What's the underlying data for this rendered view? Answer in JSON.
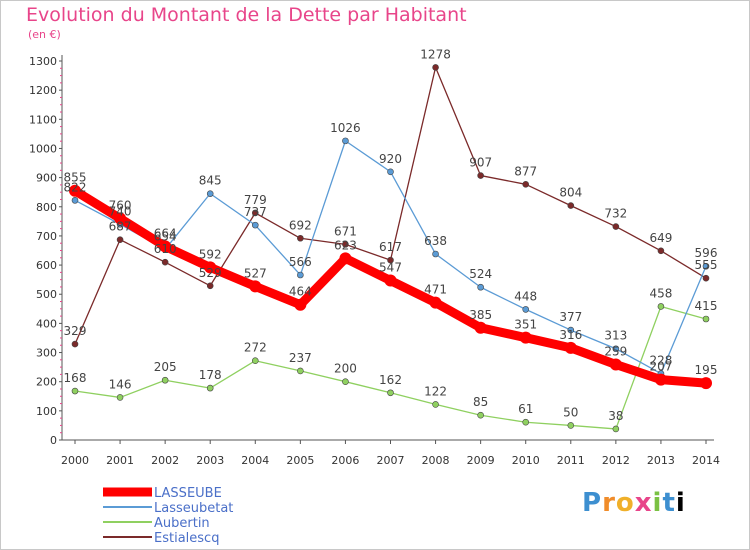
{
  "header": {
    "title": "Evolution du Montant de la Dette par Habitant",
    "unit": "(en €)"
  },
  "brand": {
    "name": "Proxiti"
  },
  "chart_data": {
    "type": "line",
    "x": [
      "2000",
      "2001",
      "2002",
      "2003",
      "2004",
      "2005",
      "2006",
      "2007",
      "2008",
      "2009",
      "2010",
      "2011",
      "2012",
      "2013",
      "2014"
    ],
    "ylim": [
      0,
      1300
    ],
    "yticks": [
      0,
      100,
      200,
      300,
      400,
      500,
      600,
      700,
      800,
      900,
      1000,
      1100,
      1200,
      1300
    ],
    "grid": false,
    "legend": "bottom-left",
    "series": [
      {
        "name": "LASSEUBE",
        "color": "#ff0000",
        "values": [
          855,
          760,
          664,
          592,
          527,
          464,
          623,
          547,
          471,
          385,
          351,
          316,
          259,
          207,
          195
        ]
      },
      {
        "name": "Lasseubetat",
        "color": "#5b9bd5",
        "values": [
          822,
          740,
          654,
          845,
          737,
          566,
          1026,
          920,
          638,
          524,
          448,
          377,
          313,
          228,
          596
        ]
      },
      {
        "name": "Aubertin",
        "color": "#8fd060",
        "values": [
          168,
          146,
          205,
          178,
          272,
          237,
          200,
          162,
          122,
          85,
          61,
          50,
          38,
          458,
          415
        ]
      },
      {
        "name": "Estialescq",
        "color": "#7b2a2a",
        "values": [
          329,
          687,
          610,
          529,
          779,
          692,
          671,
          617,
          1278,
          907,
          877,
          804,
          732,
          649,
          555
        ]
      }
    ]
  }
}
